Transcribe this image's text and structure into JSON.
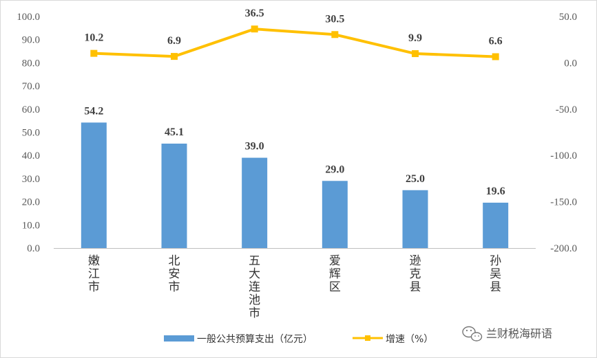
{
  "chart_data": {
    "type": "bar",
    "categories": [
      "嫩江市",
      "北安市",
      "五大连池市",
      "爱辉区",
      "逊克县",
      "孙吴县"
    ],
    "series": [
      {
        "name": "一般公共预算支出（亿元）",
        "type": "bar",
        "axis": "left",
        "color": "#5B9BD5",
        "values": [
          54.2,
          45.1,
          39.0,
          29.0,
          25.0,
          19.6
        ],
        "labels": [
          "54.2",
          "45.1",
          "39.0",
          "29.0",
          "25.0",
          "19.6"
        ]
      },
      {
        "name": "增速（%）",
        "type": "line",
        "axis": "right",
        "color": "#FFC000",
        "values": [
          10.2,
          6.9,
          36.5,
          30.5,
          9.9,
          6.6
        ],
        "labels": [
          "10.2",
          "6.9",
          "36.5",
          "30.5",
          "9.9",
          "6.6"
        ]
      }
    ],
    "y_left": {
      "ylim": [
        0,
        100
      ],
      "ticks": [
        0,
        10,
        20,
        30,
        40,
        50,
        60,
        70,
        80,
        90,
        100
      ],
      "tick_labels": [
        "0.0",
        "10.0",
        "20.0",
        "30.0",
        "40.0",
        "50.0",
        "60.0",
        "70.0",
        "80.0",
        "90.0",
        "100.0"
      ]
    },
    "y_right": {
      "ylim": [
        -200,
        50
      ],
      "ticks": [
        -200,
        -150,
        -100,
        -50,
        0,
        50
      ],
      "tick_labels": [
        "-200.0",
        "-150.0",
        "-100.0",
        "-50.0",
        "0.0",
        "50.0"
      ]
    },
    "legend": {
      "position": "bottom",
      "items": [
        "一般公共预算支出（亿元）",
        "增速（%）"
      ]
    },
    "grid": false
  },
  "watermark": {
    "text": "兰财税海研语",
    "icon": "wechat-icon"
  }
}
